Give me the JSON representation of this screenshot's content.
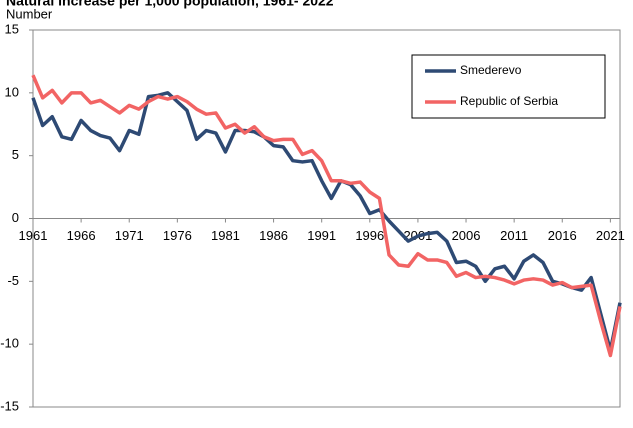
{
  "chart_data": {
    "type": "line",
    "title": "Natural increase per 1,000 population, 1961- 2022",
    "y_label": "Number",
    "x": [
      1961,
      1962,
      1963,
      1964,
      1965,
      1966,
      1967,
      1968,
      1969,
      1970,
      1971,
      1972,
      1973,
      1974,
      1975,
      1976,
      1977,
      1978,
      1979,
      1980,
      1981,
      1982,
      1983,
      1984,
      1985,
      1986,
      1987,
      1988,
      1989,
      1990,
      1991,
      1992,
      1993,
      1994,
      1995,
      1996,
      1997,
      1998,
      1999,
      2000,
      2001,
      2002,
      2003,
      2004,
      2005,
      2006,
      2007,
      2008,
      2009,
      2010,
      2011,
      2012,
      2013,
      2014,
      2015,
      2016,
      2017,
      2018,
      2019,
      2020,
      2021,
      2022
    ],
    "series": [
      {
        "name": "Smederevo",
        "color": "#2e4a74",
        "values": [
          9.6,
          7.4,
          8.1,
          6.5,
          6.3,
          7.8,
          7.0,
          6.6,
          6.4,
          5.4,
          7.0,
          6.7,
          9.7,
          9.8,
          10.0,
          9.3,
          8.6,
          6.3,
          7.0,
          6.8,
          5.3,
          7.0,
          7.0,
          6.9,
          6.5,
          5.8,
          5.7,
          4.6,
          4.5,
          4.6,
          3.0,
          1.6,
          3.0,
          2.7,
          1.8,
          0.4,
          0.7,
          -0.2,
          -1.0,
          -1.8,
          -1.4,
          -1.2,
          -1.1,
          -1.8,
          -3.5,
          -3.4,
          -3.8,
          -5.0,
          -4.0,
          -3.8,
          -4.8,
          -3.4,
          -2.9,
          -3.5,
          -5.0,
          -5.2,
          -5.5,
          -5.7,
          -4.7,
          -7.6,
          -10.5,
          -6.7
        ]
      },
      {
        "name": "Republic of Serbia",
        "color": "#f26464",
        "values": [
          11.4,
          9.6,
          10.2,
          9.2,
          10.0,
          10.0,
          9.2,
          9.4,
          8.9,
          8.4,
          9.0,
          8.7,
          9.3,
          9.7,
          9.5,
          9.7,
          9.3,
          8.7,
          8.3,
          8.4,
          7.2,
          7.5,
          6.8,
          7.3,
          6.5,
          6.2,
          6.3,
          6.3,
          5.1,
          5.4,
          4.6,
          3.0,
          3.0,
          2.8,
          2.9,
          2.1,
          1.6,
          -2.9,
          -3.7,
          -3.8,
          -2.8,
          -3.3,
          -3.3,
          -3.5,
          -4.6,
          -4.3,
          -4.7,
          -4.6,
          -4.7,
          -4.9,
          -5.2,
          -4.9,
          -4.8,
          -4.9,
          -5.3,
          -5.1,
          -5.5,
          -5.4,
          -5.3,
          -8.2,
          -10.9,
          -7.0
        ]
      }
    ],
    "xlim": [
      1961,
      2022
    ],
    "xticks": [
      1961,
      1966,
      1971,
      1976,
      1981,
      1986,
      1991,
      1996,
      2001,
      2006,
      2011,
      2016,
      2021
    ],
    "ylim": [
      -15,
      15
    ],
    "yticks": [
      -15,
      -10,
      -5,
      0,
      5,
      10,
      15
    ],
    "legend": "top-right"
  }
}
